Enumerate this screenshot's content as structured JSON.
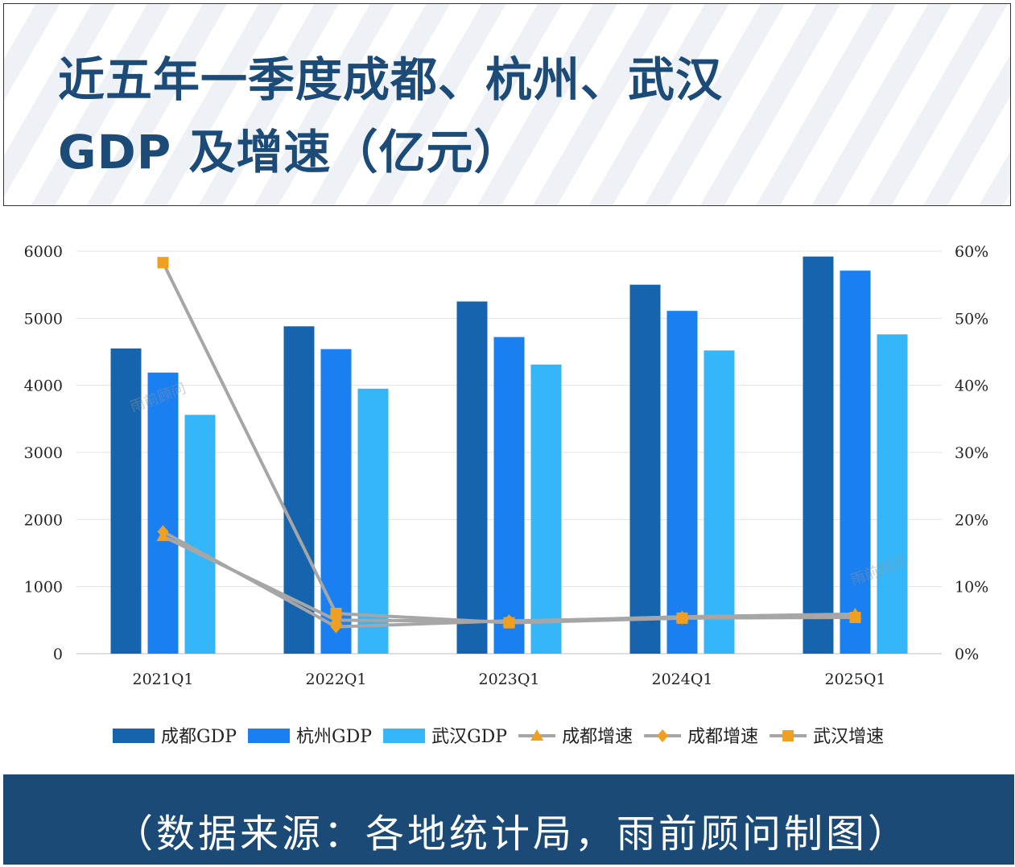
{
  "title": {
    "line1": "近五年一季度成都、杭州、武汉",
    "line2": "GDP 及增速（亿元）"
  },
  "footer": "（数据来源：各地统计局，雨前顾问制图）",
  "watermark": "雨前顾问",
  "chart_data": {
    "type": "bar",
    "categories": [
      "2021Q1",
      "2022Q1",
      "2023Q1",
      "2024Q1",
      "2025Q1"
    ],
    "y_left": {
      "min": 0,
      "max": 6000,
      "ticks": [
        "0",
        "1000",
        "2000",
        "3000",
        "4000",
        "5000",
        "6000"
      ]
    },
    "y_right": {
      "min": 0,
      "max": 60,
      "unit": "%",
      "ticks": [
        "0%",
        "10%",
        "20%",
        "30%",
        "40%",
        "50%",
        "60%"
      ]
    },
    "grid": true,
    "legend_position": "bottom",
    "bar_series": [
      {
        "name": "成都GDP",
        "color": "#1664ad",
        "values": [
          4550,
          4880,
          5250,
          5500,
          5920
        ]
      },
      {
        "name": "杭州GDP",
        "color": "#1a7ff0",
        "values": [
          4190,
          4540,
          4720,
          5110,
          5710
        ]
      },
      {
        "name": "武汉GDP",
        "color": "#34b6f8",
        "values": [
          3560,
          3950,
          4310,
          4520,
          4760
        ]
      }
    ],
    "line_series": [
      {
        "name": "成都增速",
        "marker": "triangle",
        "values": [
          17.5,
          5.0,
          4.8,
          5.5,
          5.9
        ]
      },
      {
        "name": "成都增速",
        "marker": "diamond",
        "values": [
          18.2,
          4.0,
          4.9,
          5.3,
          5.6
        ]
      },
      {
        "name": "武汉增速",
        "marker": "square",
        "values": [
          58.3,
          6.0,
          4.6,
          5.3,
          5.4
        ]
      }
    ],
    "line_color": "#a6a6a6",
    "marker_color": "#f0a020"
  }
}
